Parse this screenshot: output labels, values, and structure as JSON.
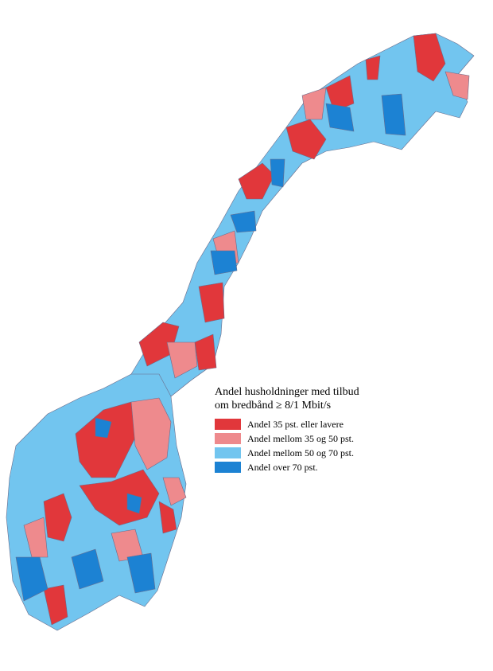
{
  "legend": {
    "title": "Andel husholdninger med tilbud om bredbånd ≥ 8/1 Mbit/s",
    "items": [
      {
        "label": "Andel 35 pst. eller lavere",
        "color": "#e1373b"
      },
      {
        "label": "Andel mellom 35 og 50 pst.",
        "color": "#ee8a8d"
      },
      {
        "label": "Andel mellom 50 og 70 pst.",
        "color": "#72c5ef"
      },
      {
        "label": "Andel over 70 pst.",
        "color": "#1c82d3"
      }
    ]
  }
}
